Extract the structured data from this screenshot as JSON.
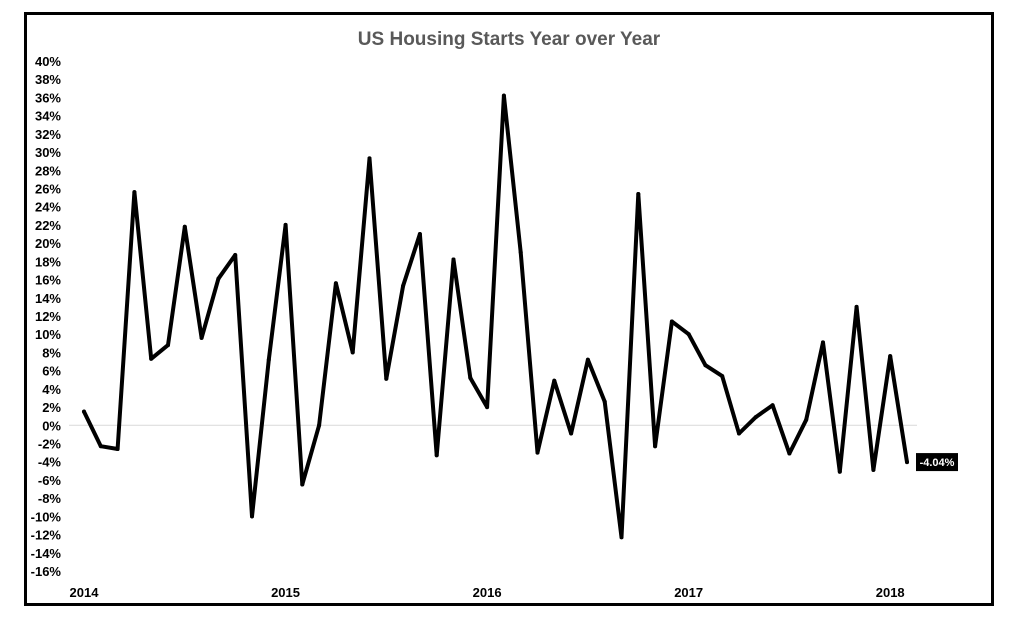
{
  "chart_data": {
    "type": "line",
    "title": "US Housing Starts Year over Year",
    "xlabel": "",
    "ylabel": "",
    "ylim": [
      -16,
      40
    ],
    "y_tick_labels": [
      "40%",
      "38%",
      "36%",
      "34%",
      "32%",
      "30%",
      "28%",
      "26%",
      "24%",
      "22%",
      "20%",
      "18%",
      "16%",
      "14%",
      "12%",
      "10%",
      "8%",
      "6%",
      "4%",
      "2%",
      "0%",
      "-2%",
      "-4%",
      "-6%",
      "-8%",
      "-10%",
      "-12%",
      "-14%",
      "-16%"
    ],
    "x_tick_labels": [
      "2014",
      "2015",
      "2016",
      "2017",
      "2018"
    ],
    "grid": false,
    "line_color": "#000000",
    "series": [
      {
        "values": [
          1.5,
          -2.3,
          -2.6,
          25.6,
          7.3,
          8.8,
          21.8,
          9.6,
          16.1,
          18.7,
          -10.0,
          7.2,
          22.0,
          -6.5,
          0.0,
          15.6,
          8.0,
          29.3,
          5.1,
          15.3,
          21.0,
          -3.3,
          18.2,
          5.2,
          2.0,
          36.2,
          19.0,
          -3.0,
          4.9,
          -0.9,
          7.2,
          2.6,
          -12.3,
          25.4,
          -2.3,
          11.4,
          10.0,
          6.6,
          5.4,
          -0.9,
          0.9,
          2.2,
          -3.1,
          0.6,
          9.1,
          -5.1,
          13.0,
          -4.9,
          7.6,
          -4.04
        ]
      }
    ],
    "last_value_label": "-4.04%"
  }
}
